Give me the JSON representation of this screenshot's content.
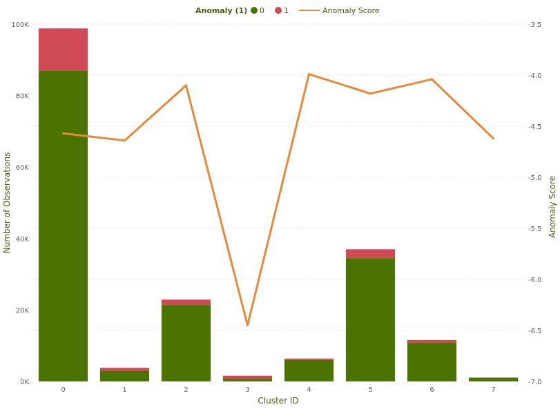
{
  "chart_data": {
    "type": "bar",
    "stacked": true,
    "combo_with_line": true,
    "legend": {
      "title": "Anomaly (1)",
      "position": "top-center",
      "items": [
        {
          "label": "0",
          "color": "#4a7300",
          "marker": "circle"
        },
        {
          "label": "1",
          "color": "#d04a55",
          "marker": "circle"
        },
        {
          "label": "Anomaly Score",
          "color": "#e8893a",
          "marker": "line"
        }
      ]
    },
    "categories": [
      "0",
      "1",
      "2",
      "3",
      "4",
      "5",
      "6",
      "7"
    ],
    "series": [
      {
        "name": "0",
        "axis": "left",
        "values": [
          87000,
          2900,
          21400,
          700,
          6000,
          34500,
          10800,
          1000
        ],
        "color": "#4a7300"
      },
      {
        "name": "1",
        "axis": "left",
        "values": [
          11800,
          900,
          1500,
          900,
          400,
          2500,
          800,
          100
        ],
        "color": "#d04a55"
      },
      {
        "name": "Anomaly Score",
        "type": "line",
        "axis": "right",
        "values": [
          -4.57,
          -4.64,
          -4.1,
          -6.45,
          -3.99,
          -4.18,
          -4.04,
          -4.62
        ],
        "color": "#e8893a"
      }
    ],
    "xlabel": "Cluster ID",
    "ylabel": "Number of Observations",
    "y2label": "Anomaly Score",
    "ylim": [
      0,
      100000
    ],
    "y2lim": [
      -7.0,
      -3.5
    ],
    "yticks": [
      "0K",
      "20K",
      "40K",
      "60K",
      "80K",
      "100K"
    ],
    "y2ticks": [
      "-3.5",
      "-4.0",
      "-4.5",
      "-5.0",
      "-5.5",
      "-6.0",
      "-6.5",
      "-7.0"
    ],
    "grid": true
  }
}
